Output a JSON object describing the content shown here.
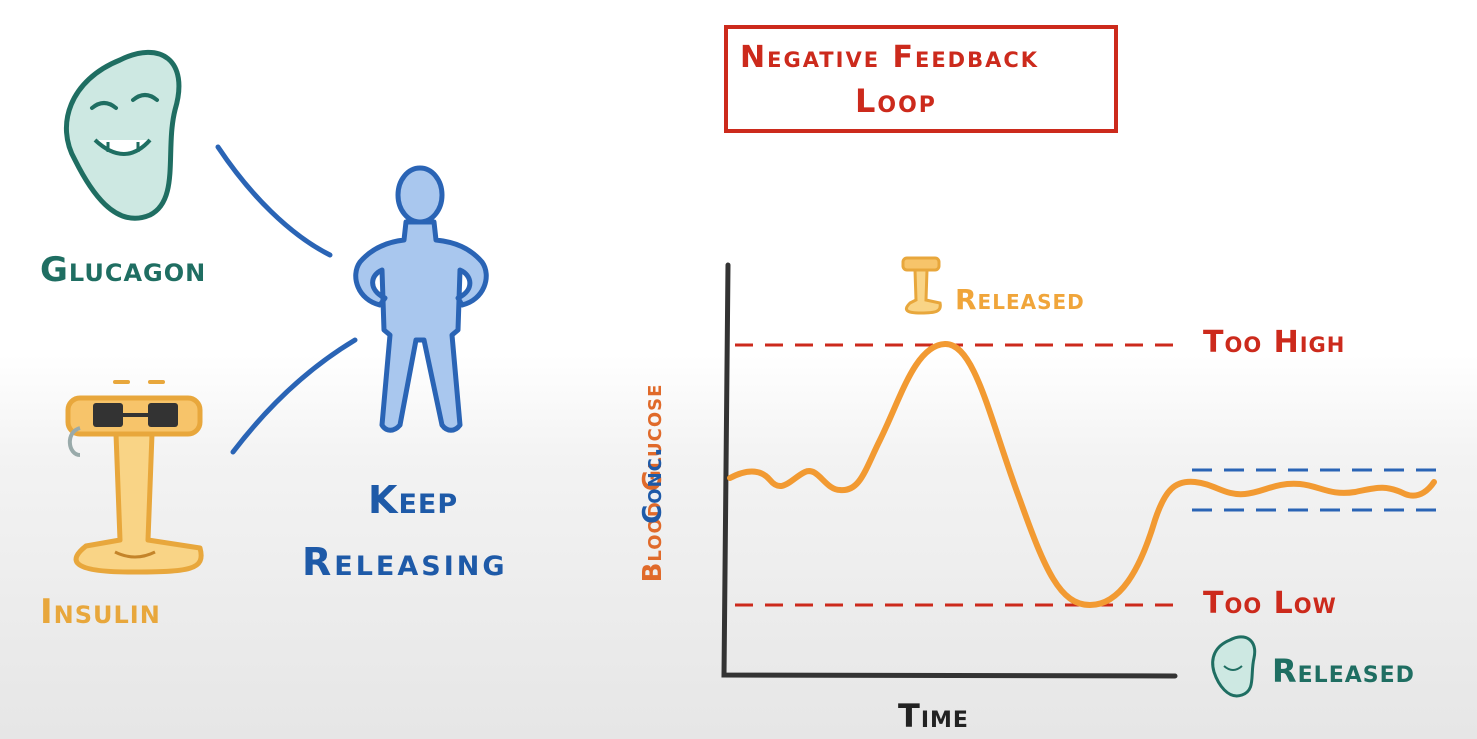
{
  "title": {
    "line1": "Negative Feedback",
    "line2": "Loop"
  },
  "left_panel": {
    "glucagon_label": "Glucagon",
    "insulin_label": "Insulin",
    "keep_line1": "Keep",
    "keep_line2": "Releasing"
  },
  "graph": {
    "top_annotation": "Released",
    "too_high_label": "Too High",
    "too_low_label": "Too Low",
    "bottom_annotation": "Released",
    "x_label": "Time",
    "y_label_line1": "Blood Glucose",
    "y_label_line2": "Conc."
  },
  "colors": {
    "title_red": "#cc2a1c",
    "glucagon_teal": "#1f6e62",
    "insulin_orange": "#e8a73c",
    "body_blue": "#1e5aa8",
    "curve_orange": "#f29a32",
    "axis_dark": "#333333",
    "dash_blue": "#2a64b5"
  },
  "icons": [
    "glucagon-pancreas-icon",
    "insulin-i-beam-icon",
    "person-figure-icon",
    "connector-line-icon"
  ]
}
